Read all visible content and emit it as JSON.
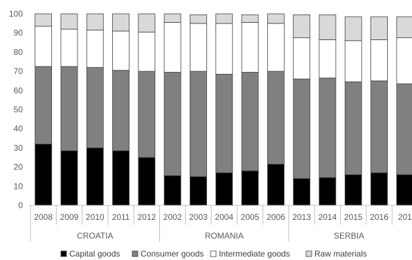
{
  "chart_data": {
    "type": "bar",
    "stacked": true,
    "ylim": [
      0,
      100
    ],
    "yticks": [
      0,
      10,
      20,
      30,
      40,
      50,
      60,
      70,
      80,
      90,
      100
    ],
    "grid": false,
    "legend_position": "bottom",
    "groups": [
      {
        "name": "CROATIA",
        "categories": [
          "2008",
          "2009",
          "2010",
          "2011",
          "2012"
        ]
      },
      {
        "name": "ROMANIA",
        "categories": [
          "2002",
          "2003",
          "2004",
          "2005",
          "2006"
        ]
      },
      {
        "name": "SERBIA",
        "categories": [
          "2013",
          "2014",
          "2015",
          "2016",
          "201"
        ]
      }
    ],
    "categories": [
      "2008",
      "2009",
      "2010",
      "2011",
      "2012",
      "2002",
      "2003",
      "2004",
      "2005",
      "2006",
      "2013",
      "2014",
      "2015",
      "2016",
      "201"
    ],
    "series": [
      {
        "name": "Capital goods",
        "color": "#000000",
        "values": [
          32,
          28.5,
          30,
          28.5,
          25,
          15.5,
          15,
          17,
          18,
          21.5,
          14,
          14.5,
          16,
          17,
          16
        ]
      },
      {
        "name": "Consumer goods",
        "color": "#808080",
        "values": [
          40.5,
          44,
          42,
          42,
          45,
          54,
          55,
          51.5,
          51.5,
          48.5,
          52,
          52,
          48.5,
          48,
          47.5
        ]
      },
      {
        "name": "Intermediate goods",
        "color": "#ffffff",
        "values": [
          21,
          19.5,
          19.5,
          20.5,
          20.5,
          26,
          25,
          26.5,
          26,
          25,
          21.5,
          20,
          21.5,
          21.5,
          24
        ]
      },
      {
        "name": "Raw materials",
        "color": "#d9d9d9",
        "values": [
          6.5,
          8,
          8.5,
          9,
          9.5,
          4.5,
          4.5,
          5,
          4,
          5,
          12,
          13,
          12.5,
          12,
          11
        ]
      }
    ]
  }
}
